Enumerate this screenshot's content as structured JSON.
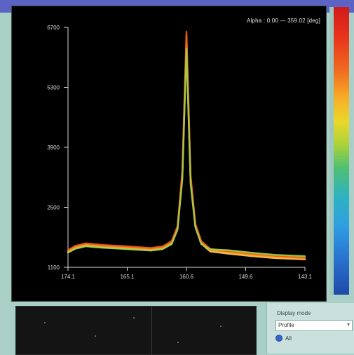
{
  "colors": {
    "titlebar": "#5b63c4",
    "panel_bg": "#a9cfc6",
    "plot_bg": "#000000",
    "axis": "#d9d9d9"
  },
  "readout": {
    "text": "Alpha : 0.00 — 359.02 [deg]"
  },
  "side_panel": {
    "display_label": "Display mode",
    "mode_value": "Profile",
    "option_all": "All"
  },
  "chart_data": {
    "type": "line",
    "title": "",
    "xlabel": "",
    "ylabel": "",
    "x_ticks": [
      "174.1",
      "165.1",
      "160.6",
      "149.6",
      "143.1"
    ],
    "y_ticks": [
      "6700",
      "5300",
      "3900",
      "2500",
      "1100"
    ],
    "xlim": [
      0,
      4
    ],
    "ylim": [
      1100,
      6700
    ],
    "series": [
      {
        "color": "#ffd45a",
        "x": [
          0,
          0.12,
          0.3,
          0.6,
          1.0,
          1.4,
          1.6,
          1.75,
          1.85,
          1.93,
          2.0,
          2.07,
          2.15,
          2.25,
          2.4,
          2.7,
          3.1,
          3.5,
          4.0
        ],
        "y": [
          1450,
          1540,
          1600,
          1560,
          1530,
          1495,
          1530,
          1650,
          2000,
          3200,
          6300,
          3100,
          2050,
          1650,
          1470,
          1420,
          1360,
          1315,
          1285
        ]
      },
      {
        "color": "#ffb23a",
        "x": [
          0,
          0.12,
          0.3,
          0.6,
          1.0,
          1.4,
          1.6,
          1.75,
          1.85,
          1.93,
          2.0,
          2.07,
          2.15,
          2.25,
          2.4,
          2.7,
          3.1,
          3.5,
          4.0
        ],
        "y": [
          1470,
          1560,
          1620,
          1580,
          1550,
          1515,
          1550,
          1670,
          2020,
          3250,
          6400,
          3150,
          2070,
          1670,
          1490,
          1440,
          1380,
          1335,
          1300
        ]
      },
      {
        "color": "#ff8a22",
        "x": [
          0,
          0.12,
          0.3,
          0.6,
          1.0,
          1.4,
          1.6,
          1.75,
          1.85,
          1.93,
          2.0,
          2.07,
          2.15,
          2.25,
          2.4,
          2.7,
          3.1,
          3.5,
          4.0
        ],
        "y": [
          1490,
          1580,
          1640,
          1600,
          1570,
          1535,
          1570,
          1690,
          2040,
          3300,
          6500,
          3200,
          2090,
          1690,
          1510,
          1460,
          1400,
          1350,
          1315
        ]
      },
      {
        "color": "#f25d17",
        "x": [
          0,
          0.12,
          0.3,
          0.6,
          1.0,
          1.4,
          1.6,
          1.75,
          1.85,
          1.93,
          2.0,
          2.07,
          2.15,
          2.25,
          2.4,
          2.7,
          3.1,
          3.5,
          4.0
        ],
        "y": [
          1500,
          1600,
          1660,
          1620,
          1590,
          1550,
          1590,
          1710,
          2060,
          3350,
          6600,
          3250,
          2110,
          1710,
          1530,
          1480,
          1420,
          1370,
          1330
        ]
      },
      {
        "color": "#9fd24a",
        "x": [
          0,
          0.12,
          0.3,
          0.6,
          1.0,
          1.4,
          1.6,
          1.75,
          1.85,
          1.93,
          2.0,
          2.07,
          2.15,
          2.25,
          2.4,
          2.7,
          3.1,
          3.5,
          4.0
        ],
        "y": [
          1440,
          1530,
          1590,
          1555,
          1525,
          1490,
          1525,
          1640,
          1980,
          3150,
          6200,
          3050,
          2035,
          1640,
          1520,
          1500,
          1440,
          1390,
          1360
        ]
      }
    ]
  }
}
